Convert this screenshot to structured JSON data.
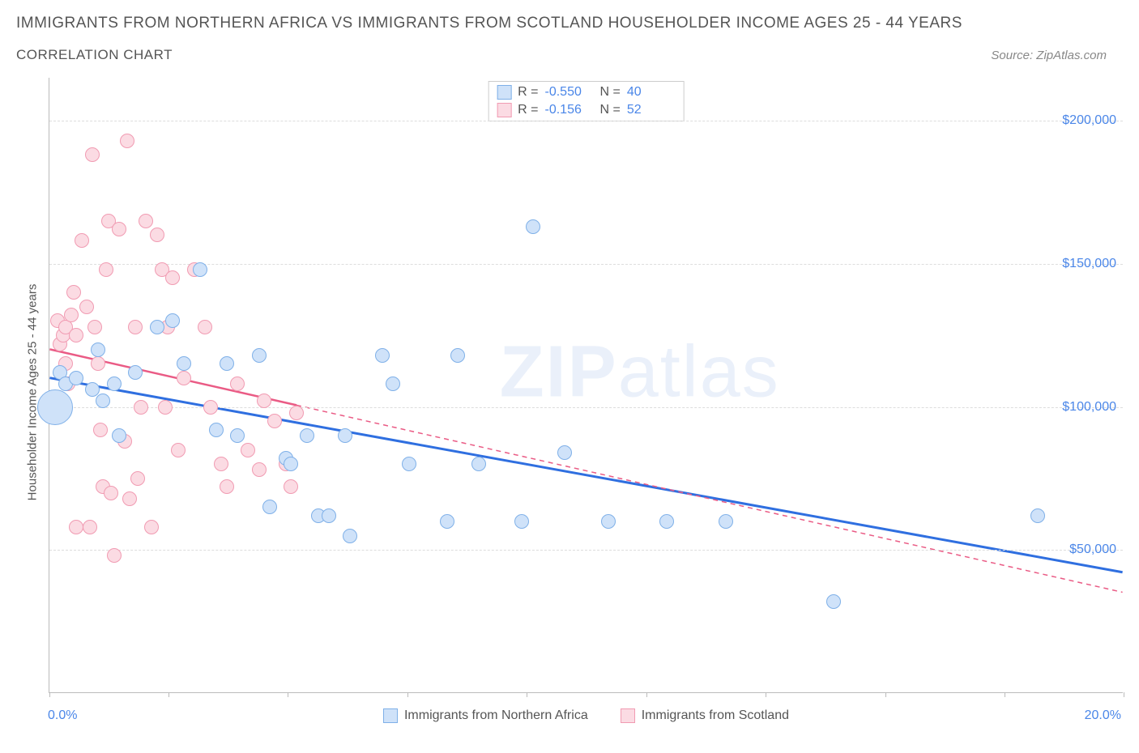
{
  "title": "IMMIGRANTS FROM NORTHERN AFRICA VS IMMIGRANTS FROM SCOTLAND HOUSEHOLDER INCOME AGES 25 - 44 YEARS",
  "subtitle": "CORRELATION CHART",
  "source_label": "Source:",
  "source_name": "ZipAtlas.com",
  "y_axis_label": "Householder Income Ages 25 - 44 years",
  "chart": {
    "type": "scatter",
    "x_min": 0.0,
    "x_max": 20.0,
    "y_min": 0,
    "y_max": 215000,
    "y_ticks": [
      50000,
      100000,
      150000,
      200000
    ],
    "y_tick_labels": [
      "$50,000",
      "$100,000",
      "$150,000",
      "$200,000"
    ],
    "x_tick_positions": [
      0,
      2.22,
      4.44,
      6.67,
      8.89,
      11.11,
      13.33,
      15.56,
      17.78,
      20.0
    ],
    "x_range_labels": {
      "min": "0.0%",
      "max": "20.0%"
    },
    "grid_color": "#dddddd",
    "axis_color": "#bbbbbb",
    "background_color": "#ffffff",
    "label_color": "#4a86e8"
  },
  "series": [
    {
      "key": "northern_africa",
      "name": "Immigrants from Northern Africa",
      "color_fill": "#cfe2f9",
      "color_stroke": "#7fb0e8",
      "R": "-0.550",
      "N": "40",
      "dot_radius": 9,
      "trend": {
        "x1": 0.0,
        "y1": 110000,
        "x2": 20.0,
        "y2": 42000,
        "stroke": "#2f6fe0",
        "width": 3,
        "dash": null,
        "solid_until_x": 20.0
      },
      "points": [
        {
          "x": 0.1,
          "y": 100000,
          "r": 22
        },
        {
          "x": 0.2,
          "y": 112000
        },
        {
          "x": 0.3,
          "y": 108000
        },
        {
          "x": 0.5,
          "y": 110000
        },
        {
          "x": 0.8,
          "y": 106000
        },
        {
          "x": 1.2,
          "y": 108000
        },
        {
          "x": 1.3,
          "y": 90000
        },
        {
          "x": 1.6,
          "y": 112000
        },
        {
          "x": 2.0,
          "y": 128000
        },
        {
          "x": 2.3,
          "y": 130000
        },
        {
          "x": 2.5,
          "y": 115000
        },
        {
          "x": 2.8,
          "y": 148000
        },
        {
          "x": 3.1,
          "y": 92000
        },
        {
          "x": 3.3,
          "y": 115000
        },
        {
          "x": 3.5,
          "y": 90000
        },
        {
          "x": 3.9,
          "y": 118000
        },
        {
          "x": 4.1,
          "y": 65000
        },
        {
          "x": 4.4,
          "y": 82000
        },
        {
          "x": 4.5,
          "y": 80000
        },
        {
          "x": 4.8,
          "y": 90000
        },
        {
          "x": 5.0,
          "y": 62000
        },
        {
          "x": 5.2,
          "y": 62000
        },
        {
          "x": 5.5,
          "y": 90000
        },
        {
          "x": 5.6,
          "y": 55000
        },
        {
          "x": 6.2,
          "y": 118000
        },
        {
          "x": 6.4,
          "y": 108000
        },
        {
          "x": 6.7,
          "y": 80000
        },
        {
          "x": 7.4,
          "y": 60000
        },
        {
          "x": 7.6,
          "y": 118000
        },
        {
          "x": 8.0,
          "y": 80000
        },
        {
          "x": 8.8,
          "y": 60000
        },
        {
          "x": 9.0,
          "y": 163000
        },
        {
          "x": 9.6,
          "y": 84000
        },
        {
          "x": 10.4,
          "y": 60000
        },
        {
          "x": 11.5,
          "y": 60000
        },
        {
          "x": 12.6,
          "y": 60000
        },
        {
          "x": 14.6,
          "y": 32000
        },
        {
          "x": 18.4,
          "y": 62000
        },
        {
          "x": 0.9,
          "y": 120000
        },
        {
          "x": 1.0,
          "y": 102000
        }
      ]
    },
    {
      "key": "scotland",
      "name": "Immigrants from Scotland",
      "color_fill": "#fbdbe3",
      "color_stroke": "#f19bb2",
      "R": "-0.156",
      "N": "52",
      "dot_radius": 9,
      "trend": {
        "x1": 0.0,
        "y1": 120000,
        "x2": 20.0,
        "y2": 35000,
        "stroke": "#ea5b85",
        "width": 2.5,
        "dash": "6,5",
        "solid_until_x": 4.6
      },
      "points": [
        {
          "x": 0.1,
          "y": 100000,
          "r": 20
        },
        {
          "x": 0.15,
          "y": 130000
        },
        {
          "x": 0.2,
          "y": 122000
        },
        {
          "x": 0.25,
          "y": 125000
        },
        {
          "x": 0.3,
          "y": 128000
        },
        {
          "x": 0.3,
          "y": 115000
        },
        {
          "x": 0.35,
          "y": 108000
        },
        {
          "x": 0.4,
          "y": 132000
        },
        {
          "x": 0.45,
          "y": 140000
        },
        {
          "x": 0.5,
          "y": 125000
        },
        {
          "x": 0.5,
          "y": 58000
        },
        {
          "x": 0.6,
          "y": 158000
        },
        {
          "x": 0.7,
          "y": 135000
        },
        {
          "x": 0.75,
          "y": 58000
        },
        {
          "x": 0.8,
          "y": 188000
        },
        {
          "x": 0.85,
          "y": 128000
        },
        {
          "x": 0.9,
          "y": 115000
        },
        {
          "x": 0.95,
          "y": 92000
        },
        {
          "x": 1.0,
          "y": 72000
        },
        {
          "x": 1.05,
          "y": 148000
        },
        {
          "x": 1.1,
          "y": 165000
        },
        {
          "x": 1.15,
          "y": 70000
        },
        {
          "x": 1.2,
          "y": 48000
        },
        {
          "x": 1.3,
          "y": 162000
        },
        {
          "x": 1.4,
          "y": 88000
        },
        {
          "x": 1.45,
          "y": 193000
        },
        {
          "x": 1.5,
          "y": 68000
        },
        {
          "x": 1.6,
          "y": 128000
        },
        {
          "x": 1.65,
          "y": 75000
        },
        {
          "x": 1.7,
          "y": 100000
        },
        {
          "x": 1.8,
          "y": 165000
        },
        {
          "x": 1.9,
          "y": 58000
        },
        {
          "x": 2.0,
          "y": 160000
        },
        {
          "x": 2.1,
          "y": 148000
        },
        {
          "x": 2.15,
          "y": 100000
        },
        {
          "x": 2.2,
          "y": 128000
        },
        {
          "x": 2.3,
          "y": 145000
        },
        {
          "x": 2.4,
          "y": 85000
        },
        {
          "x": 2.5,
          "y": 110000
        },
        {
          "x": 2.7,
          "y": 148000
        },
        {
          "x": 2.9,
          "y": 128000
        },
        {
          "x": 3.0,
          "y": 100000
        },
        {
          "x": 3.2,
          "y": 80000
        },
        {
          "x": 3.3,
          "y": 72000
        },
        {
          "x": 3.5,
          "y": 108000
        },
        {
          "x": 3.7,
          "y": 85000
        },
        {
          "x": 3.9,
          "y": 78000
        },
        {
          "x": 4.0,
          "y": 102000
        },
        {
          "x": 4.2,
          "y": 95000
        },
        {
          "x": 4.4,
          "y": 80000
        },
        {
          "x": 4.5,
          "y": 72000
        },
        {
          "x": 4.6,
          "y": 98000
        }
      ]
    }
  ],
  "legend_top": {
    "r_label": "R =",
    "n_label": "N ="
  },
  "watermark": {
    "part1": "ZIP",
    "part2": "atlas"
  }
}
